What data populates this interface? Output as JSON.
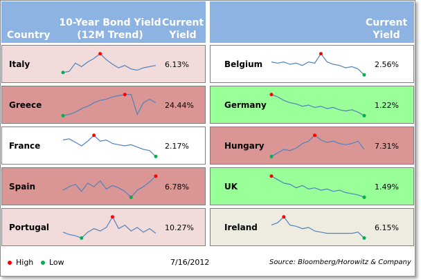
{
  "header": {
    "col_country": "Country",
    "col_trend_line1": "10-Year Bond Yield",
    "col_trend_line2": "(12M Trend)",
    "col_yield_line1": "Current",
    "col_yield_line2": "Yield",
    "right_yield_line1": "Current",
    "right_yield_line2": "Yield"
  },
  "colors": {
    "header": "#8db3e2",
    "pink": "#f2dcdb",
    "red": "#d99694",
    "green": "#99ff99",
    "white": "#ffffff",
    "beige": "#eeece1",
    "line": "#4f81bd",
    "high": "#ff0000",
    "low": "#00b050"
  },
  "rows": [
    {
      "left": {
        "name": "Italy",
        "yield": "6.13%",
        "bg": "pink",
        "trend": [
          0.15,
          0.2,
          0.55,
          0.4,
          0.6,
          0.75,
          0.95,
          0.7,
          0.5,
          0.35,
          0.45,
          0.3,
          0.25,
          0.35,
          0.4,
          0.45
        ]
      },
      "right": {
        "name": "Belgium",
        "yield": "2.56%",
        "bg": "white",
        "trend": [
          0.6,
          0.55,
          0.6,
          0.5,
          0.55,
          0.45,
          0.6,
          0.55,
          0.95,
          0.6,
          0.5,
          0.45,
          0.35,
          0.4,
          0.3,
          0.05
        ]
      }
    },
    {
      "left": {
        "name": "Greece",
        "yield": "24.44%",
        "bg": "red",
        "trend": [
          0.05,
          0.1,
          0.2,
          0.35,
          0.45,
          0.6,
          0.7,
          0.75,
          0.85,
          0.9,
          0.95,
          0.95,
          0.1,
          0.6,
          0.75,
          0.6
        ]
      },
      "right": {
        "name": "Germany",
        "yield": "1.22%",
        "bg": "green",
        "trend": [
          0.95,
          0.85,
          0.7,
          0.6,
          0.55,
          0.45,
          0.5,
          0.4,
          0.45,
          0.35,
          0.4,
          0.3,
          0.25,
          0.3,
          0.2,
          0.05
        ]
      }
    },
    {
      "left": {
        "name": "France",
        "yield": "2.17%",
        "bg": "white",
        "trend": [
          0.75,
          0.8,
          0.65,
          0.5,
          0.7,
          0.95,
          0.7,
          0.75,
          0.6,
          0.55,
          0.5,
          0.55,
          0.45,
          0.35,
          0.3,
          0.05
        ]
      },
      "right": {
        "name": "Hungary",
        "yield": "7.31%",
        "bg": "red",
        "trend": [
          0.05,
          0.2,
          0.35,
          0.3,
          0.4,
          0.6,
          0.7,
          0.95,
          0.75,
          0.65,
          0.7,
          0.6,
          0.55,
          0.6,
          0.7,
          0.35
        ]
      }
    },
    {
      "left": {
        "name": "Spain",
        "yield": "6.78%",
        "bg": "red",
        "trend": [
          0.35,
          0.5,
          0.6,
          0.3,
          0.65,
          0.5,
          0.75,
          0.4,
          0.55,
          0.45,
          0.3,
          0.05,
          0.35,
          0.5,
          0.7,
          0.95
        ]
      },
      "right": {
        "name": "UK",
        "yield": "1.49%",
        "bg": "green",
        "trend": [
          0.95,
          0.8,
          0.65,
          0.6,
          0.45,
          0.55,
          0.4,
          0.45,
          0.35,
          0.4,
          0.3,
          0.35,
          0.25,
          0.2,
          0.15,
          0.05
        ]
      }
    },
    {
      "left": {
        "name": "Portugal",
        "yield": "10.27%",
        "bg": "pink",
        "trend": [
          0.3,
          0.2,
          0.15,
          0.05,
          0.3,
          0.45,
          0.35,
          0.5,
          0.95,
          0.45,
          0.6,
          0.35,
          0.5,
          0.3,
          0.45,
          0.25
        ]
      },
      "right": {
        "name": "Ireland",
        "yield": "6.15%",
        "bg": "beige",
        "trend": [
          0.6,
          0.7,
          0.95,
          0.6,
          0.55,
          0.45,
          0.5,
          0.35,
          0.3,
          0.25,
          0.25,
          0.25,
          0.25,
          0.25,
          0.3,
          0.05
        ]
      }
    }
  ],
  "legend": {
    "high_label": "High",
    "low_label": "Low"
  },
  "footer": {
    "date": "7/16/2012",
    "source": "Source: Bloomberg/Horowitz & Company"
  }
}
